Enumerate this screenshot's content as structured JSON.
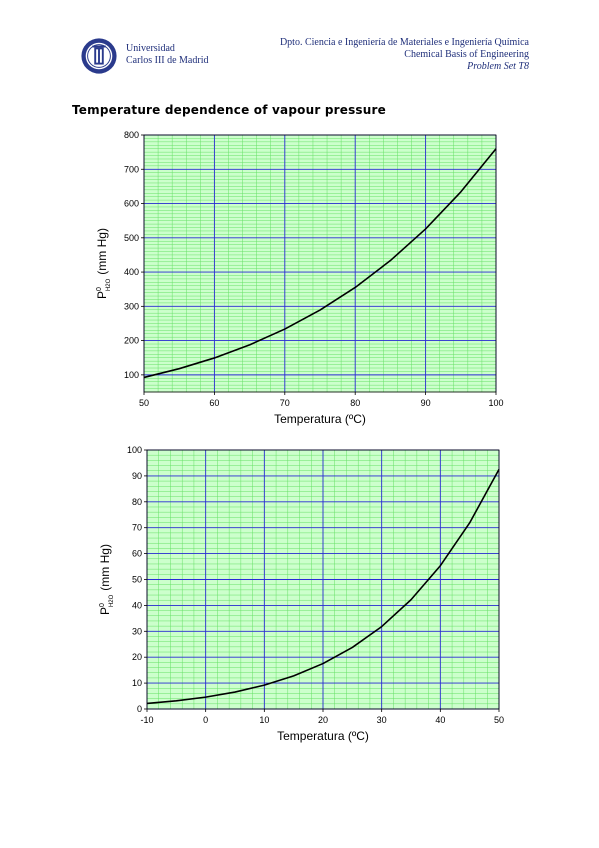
{
  "header": {
    "university_line1": "Universidad",
    "university_line2": "Carlos III de Madrid",
    "department": "Dpto. Ciencia e Ingeniería de Materiales e Ingeniería Química",
    "course": "Chemical Basis of Engineering",
    "problem_set": "Problem Set T8"
  },
  "section_title": "Temperature dependence of vapour pressure",
  "colors": {
    "major_grid": "#2b2bd6",
    "minor_grid": "#66e066",
    "curve": "#000000",
    "plot_bg": "#ccffcc"
  },
  "chart_data": [
    {
      "type": "line",
      "xlabel": "Temperatura (ºC)",
      "ylabel_main": "P",
      "ylabel_sup": "0",
      "ylabel_sub": "H2O",
      "ylabel_rest": "(mm Hg)",
      "xlim": [
        50,
        100
      ],
      "ylim": [
        50,
        800
      ],
      "xticks": [
        50,
        60,
        70,
        80,
        90,
        100
      ],
      "yticks": [
        100,
        200,
        300,
        400,
        500,
        600,
        700,
        800
      ],
      "grid": true,
      "series": [
        {
          "x": [
            50,
            55,
            60,
            65,
            70,
            75,
            80,
            85,
            90,
            95,
            100
          ],
          "y": [
            92.5,
            118.0,
            149.4,
            187.5,
            233.7,
            289.1,
            355.1,
            433.6,
            525.8,
            633.9,
            760.0
          ]
        }
      ]
    },
    {
      "type": "line",
      "xlabel": "Temperatura (ºC)",
      "ylabel_main": "P",
      "ylabel_sup": "0",
      "ylabel_sub": "H2O",
      "ylabel_rest": "(mm Hg)",
      "xlim": [
        -10,
        50
      ],
      "ylim": [
        0,
        100
      ],
      "xticks": [
        -10,
        0,
        10,
        20,
        30,
        40,
        50
      ],
      "yticks": [
        0,
        10,
        20,
        30,
        40,
        50,
        60,
        70,
        80,
        90,
        100
      ],
      "grid": true,
      "series": [
        {
          "x": [
            -10,
            -5,
            0,
            5,
            10,
            15,
            20,
            25,
            30,
            35,
            40,
            45,
            50
          ],
          "y": [
            2.15,
            3.16,
            4.58,
            6.54,
            9.21,
            12.79,
            17.54,
            23.76,
            31.82,
            42.18,
            55.32,
            71.88,
            92.51
          ]
        }
      ]
    }
  ]
}
